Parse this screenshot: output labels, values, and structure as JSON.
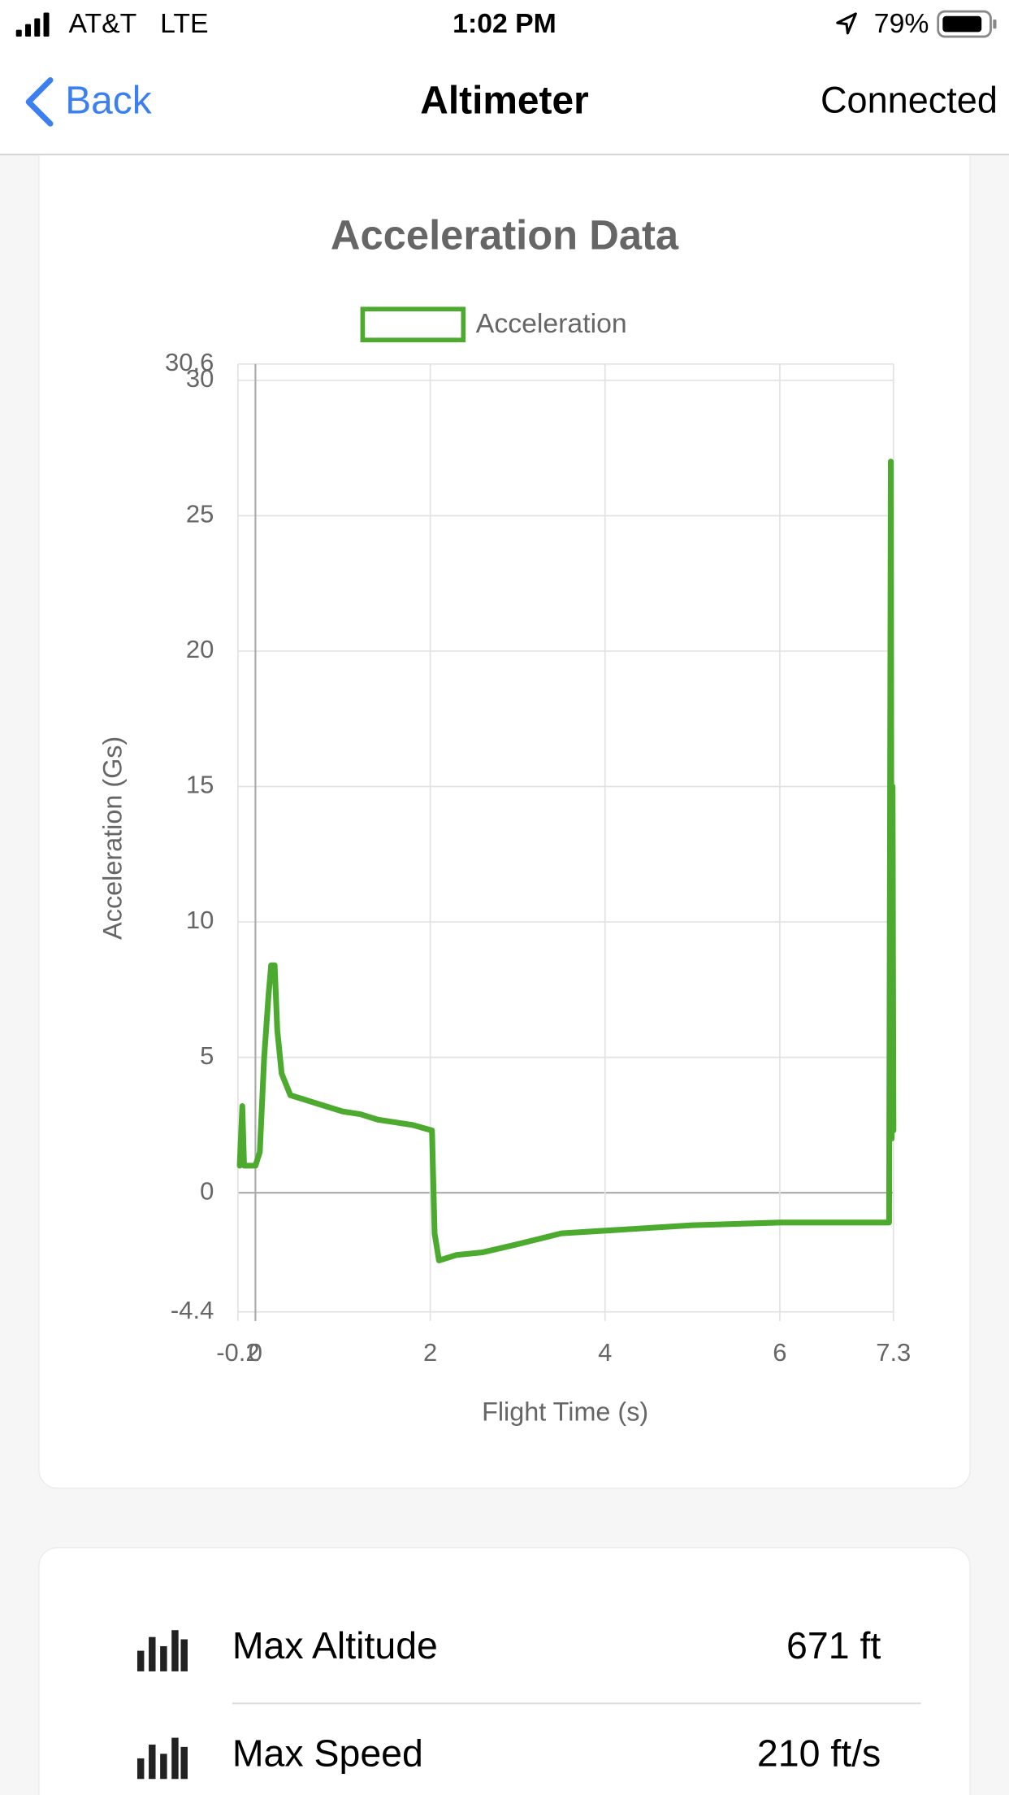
{
  "status_bar": {
    "carrier": "AT&T",
    "network": "LTE",
    "time": "1:02 PM",
    "battery": "79%"
  },
  "nav": {
    "back": "Back",
    "title": "Altimeter",
    "status": "Connected"
  },
  "chart_data": {
    "type": "line",
    "title": "Acceleration Data",
    "xlabel": "Flight Time (s)",
    "ylabel": "Acceleration (Gs)",
    "x": [
      -0.18,
      -0.15,
      -0.13,
      0,
      0.05,
      0.1,
      0.15,
      0.18,
      0.22,
      0.25,
      0.3,
      0.4,
      0.6,
      0.8,
      1.0,
      1.2,
      1.4,
      1.6,
      1.8,
      2.02,
      2.05,
      2.1,
      2.3,
      2.6,
      3.0,
      3.5,
      4.0,
      4.5,
      5.0,
      6.0,
      7.0,
      7.25,
      7.27,
      7.28,
      7.29,
      7.3
    ],
    "series": [
      {
        "name": "Acceleration",
        "color": "#4caa2f",
        "values": [
          1.0,
          3.2,
          1.0,
          1.0,
          1.5,
          5.0,
          7.3,
          8.4,
          8.4,
          6.0,
          4.4,
          3.6,
          3.4,
          3.2,
          3.0,
          2.9,
          2.7,
          2.6,
          2.5,
          2.3,
          -1.5,
          -2.5,
          -2.3,
          -2.2,
          -1.9,
          -1.5,
          -1.4,
          -1.3,
          -1.2,
          -1.1,
          -1.1,
          -1.1,
          27.0,
          2.0,
          15.0,
          2.3
        ]
      }
    ],
    "xlim": [
      -0.2,
      7.3
    ],
    "xticks": [
      -0.2,
      0,
      2,
      4,
      6,
      7.3
    ],
    "ylim": [
      -4.4,
      30.6
    ],
    "yticks": [
      -4.4,
      0,
      5,
      10,
      15,
      20,
      25,
      30,
      30.6
    ],
    "grid": true,
    "legend": "top"
  },
  "stats": [
    {
      "label": "Max Altitude",
      "value": "671 ft"
    },
    {
      "label": "Max Speed",
      "value": "210 ft/s"
    }
  ]
}
